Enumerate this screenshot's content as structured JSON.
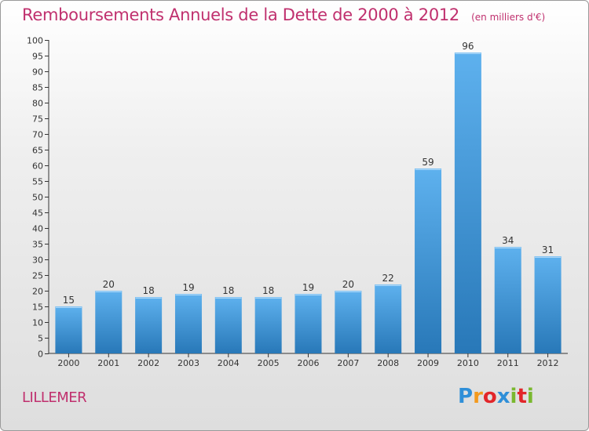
{
  "chart_data": {
    "type": "bar",
    "title": "Remboursements Annuels de la Dette de 2000 à 2012",
    "subtitle": "(en milliers d'€)",
    "categories": [
      "2000",
      "2001",
      "2002",
      "2003",
      "2004",
      "2005",
      "2006",
      "2007",
      "2008",
      "2009",
      "2010",
      "2011",
      "2012"
    ],
    "values": [
      15,
      20,
      18,
      19,
      18,
      18,
      19,
      20,
      22,
      59,
      96,
      34,
      31
    ],
    "ylim": [
      0,
      100
    ],
    "yticks": [
      0,
      5,
      10,
      15,
      20,
      25,
      30,
      35,
      40,
      45,
      50,
      55,
      60,
      65,
      70,
      75,
      80,
      85,
      90,
      95,
      100
    ],
    "xlabel": "",
    "ylabel": "",
    "grid": false,
    "bar_color_top": "#5eb1ee",
    "bar_color_bottom": "#2878b8"
  },
  "commune": "LILLEMER",
  "logo": {
    "letters": [
      "P",
      "r",
      "o",
      "x",
      "i",
      "t",
      "i"
    ],
    "colors": [
      "#2f8fd8",
      "#f39a1e",
      "#e2262a",
      "#2f8fd8",
      "#7ab82f",
      "#e2262a",
      "#7ab82f"
    ]
  }
}
